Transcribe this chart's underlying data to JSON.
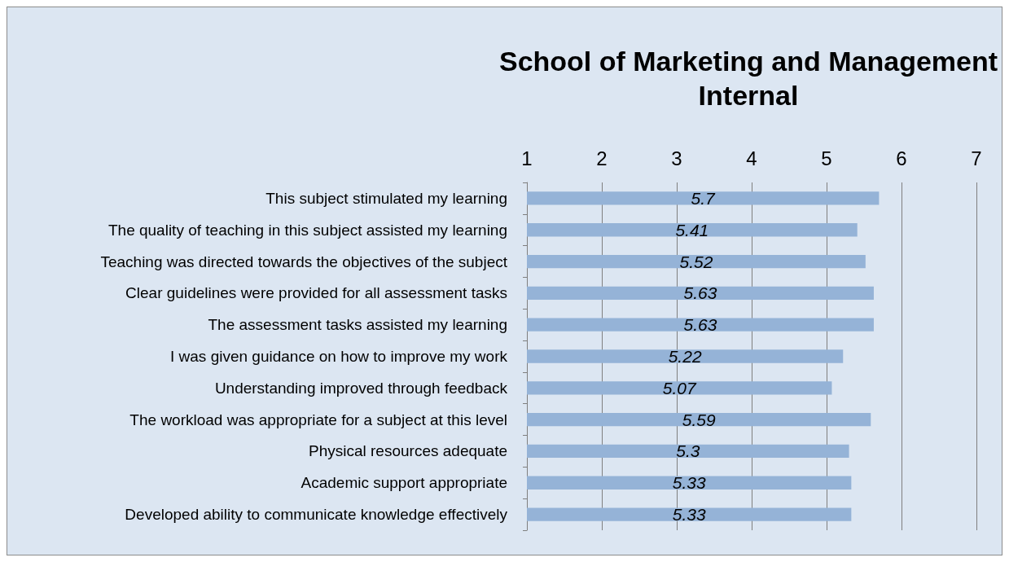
{
  "chart_data": {
    "type": "bar",
    "orientation": "horizontal",
    "title": "School of Marketing and Management\nInternal",
    "categories": [
      "This subject stimulated my learning",
      "The quality of teaching in this subject assisted my learning",
      "Teaching was directed towards the objectives of the subject",
      "Clear guidelines were provided for all assessment tasks",
      "The assessment tasks assisted my learning",
      "I was given guidance on how to improve my work",
      "Understanding improved through feedback",
      "The workload was appropriate for a subject at this level",
      "Physical resources adequate",
      "Academic support appropriate",
      "Developed ability to communicate knowledge effectively"
    ],
    "values": [
      5.7,
      5.41,
      5.52,
      5.63,
      5.63,
      5.22,
      5.07,
      5.59,
      5.3,
      5.33,
      5.33
    ],
    "color": "#95b3d7",
    "xlim": [
      1,
      7
    ],
    "xticks": [
      1,
      2,
      3,
      4,
      5,
      6,
      7
    ],
    "grid": "x",
    "data_labels": true
  }
}
